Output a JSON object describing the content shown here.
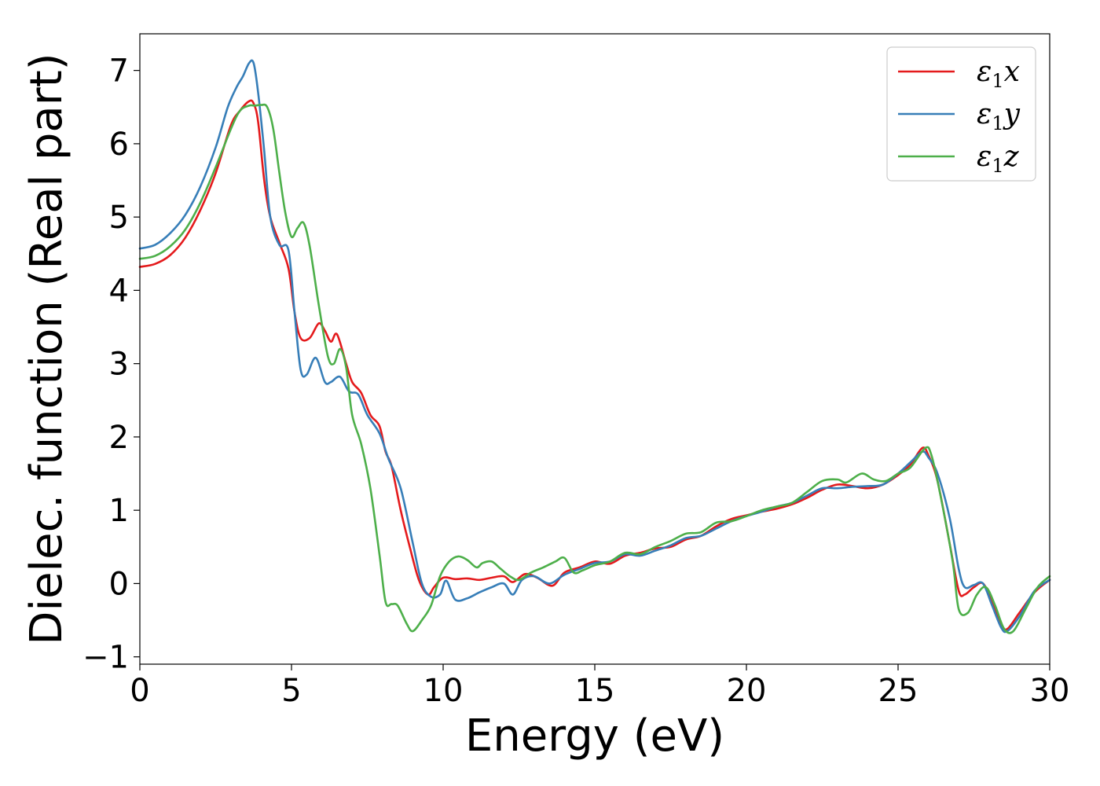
{
  "chart_data": {
    "type": "line",
    "title": "",
    "xlabel": "Energy (eV)",
    "ylabel": "Dielec. function (Real part)",
    "xlim": [
      0,
      30
    ],
    "ylim": [
      -1.1,
      7.5
    ],
    "xticks": [
      0,
      5,
      10,
      15,
      20,
      25,
      30
    ],
    "xtick_labels": [
      "0",
      "5",
      "10",
      "15",
      "20",
      "25",
      "30"
    ],
    "yticks": [
      -1,
      0,
      1,
      2,
      3,
      4,
      5,
      6,
      7
    ],
    "ytick_labels": [
      "−1",
      "0",
      "1",
      "2",
      "3",
      "4",
      "5",
      "6",
      "7"
    ],
    "grid": false,
    "legend_position": "top-right",
    "series": [
      {
        "name": "ε₁x",
        "name_main": "ε",
        "name_sub": "1",
        "name_suffix": "x",
        "color": "#e41a1c",
        "x": [
          0,
          0.5,
          1,
          1.5,
          2,
          2.5,
          3,
          3.3,
          3.6,
          3.75,
          3.9,
          4.1,
          4.3,
          4.6,
          4.9,
          5.1,
          5.3,
          5.6,
          5.9,
          6.1,
          6.3,
          6.5,
          6.8,
          7.0,
          7.3,
          7.6,
          7.9,
          8.1,
          8.3,
          8.6,
          8.9,
          9.2,
          9.5,
          9.7,
          10.0,
          10.4,
          10.8,
          11.2,
          11.6,
          12.0,
          12.3,
          12.7,
          13.1,
          13.6,
          14.0,
          14.5,
          15.0,
          15.5,
          16.0,
          16.5,
          17.0,
          17.5,
          18.0,
          18.5,
          19.0,
          19.5,
          20.0,
          20.5,
          21.0,
          21.5,
          22.0,
          22.5,
          23.0,
          23.5,
          24.0,
          24.5,
          25.0,
          25.4,
          25.8,
          26.0,
          26.3,
          26.7,
          27.0,
          27.2,
          27.5,
          27.8,
          28.1,
          28.4,
          28.6,
          29.0,
          29.5,
          30.0
        ],
        "values": [
          4.32,
          4.36,
          4.48,
          4.72,
          5.1,
          5.6,
          6.25,
          6.45,
          6.58,
          6.55,
          6.3,
          5.5,
          5.0,
          4.65,
          4.3,
          3.7,
          3.35,
          3.35,
          3.55,
          3.45,
          3.3,
          3.4,
          3.0,
          2.75,
          2.6,
          2.3,
          2.15,
          1.8,
          1.6,
          1.0,
          0.5,
          0.05,
          -0.15,
          -0.05,
          0.08,
          0.06,
          0.07,
          0.05,
          0.08,
          0.1,
          0.02,
          0.13,
          0.08,
          -0.03,
          0.15,
          0.22,
          0.3,
          0.27,
          0.38,
          0.42,
          0.48,
          0.5,
          0.6,
          0.65,
          0.78,
          0.88,
          0.93,
          0.98,
          1.02,
          1.08,
          1.17,
          1.28,
          1.35,
          1.33,
          1.3,
          1.35,
          1.48,
          1.62,
          1.85,
          1.75,
          1.4,
          0.55,
          -0.1,
          -0.15,
          -0.05,
          0.0,
          -0.25,
          -0.55,
          -0.62,
          -0.4,
          -0.12,
          0.05
        ]
      },
      {
        "name": "ε₁y",
        "name_main": "ε",
        "name_sub": "1",
        "name_suffix": "y",
        "color": "#377eb8",
        "x": [
          0,
          0.5,
          1,
          1.5,
          2,
          2.5,
          2.9,
          3.2,
          3.4,
          3.6,
          3.75,
          3.9,
          4.1,
          4.3,
          4.6,
          4.9,
          5.1,
          5.3,
          5.5,
          5.8,
          6.1,
          6.3,
          6.6,
          6.9,
          7.2,
          7.5,
          7.9,
          8.2,
          8.6,
          9.0,
          9.3,
          9.6,
          9.9,
          10.1,
          10.4,
          10.8,
          11.2,
          11.6,
          12.0,
          12.3,
          12.6,
          13.0,
          13.5,
          14.0,
          14.5,
          15.0,
          15.5,
          16.0,
          16.5,
          17.0,
          17.5,
          18.0,
          18.5,
          19.0,
          19.5,
          20.0,
          20.5,
          21.0,
          21.5,
          22.0,
          22.5,
          23.0,
          23.5,
          24.0,
          24.5,
          25.0,
          25.4,
          25.8,
          26.0,
          26.3,
          26.7,
          27.0,
          27.2,
          27.5,
          27.8,
          28.1,
          28.4,
          28.6,
          29.0,
          29.5,
          30.0
        ],
        "values": [
          4.57,
          4.62,
          4.78,
          5.03,
          5.42,
          5.95,
          6.5,
          6.78,
          6.92,
          7.1,
          7.1,
          6.7,
          5.9,
          5.0,
          4.62,
          4.55,
          3.7,
          2.92,
          2.85,
          3.08,
          2.75,
          2.75,
          2.82,
          2.62,
          2.58,
          2.3,
          2.05,
          1.7,
          1.3,
          0.55,
          0.0,
          -0.18,
          -0.15,
          0.04,
          -0.22,
          -0.2,
          -0.12,
          -0.05,
          0.0,
          -0.15,
          0.05,
          0.1,
          0.0,
          0.12,
          0.2,
          0.28,
          0.3,
          0.4,
          0.38,
          0.45,
          0.52,
          0.62,
          0.65,
          0.75,
          0.85,
          0.92,
          0.98,
          1.05,
          1.1,
          1.2,
          1.3,
          1.3,
          1.32,
          1.33,
          1.35,
          1.5,
          1.65,
          1.8,
          1.72,
          1.5,
          0.9,
          0.2,
          -0.05,
          -0.02,
          0.0,
          -0.3,
          -0.6,
          -0.65,
          -0.45,
          -0.1,
          0.05
        ]
      },
      {
        "name": "ε₁z",
        "name_main": "ε",
        "name_sub": "1",
        "name_suffix": "z",
        "color": "#4daf4a",
        "x": [
          0,
          0.5,
          1,
          1.5,
          2,
          2.5,
          3,
          3.3,
          3.6,
          3.8,
          4.0,
          4.2,
          4.4,
          4.6,
          4.8,
          5.0,
          5.2,
          5.4,
          5.6,
          5.9,
          6.2,
          6.4,
          6.6,
          6.8,
          7.0,
          7.3,
          7.6,
          7.9,
          8.1,
          8.3,
          8.5,
          8.8,
          9.0,
          9.3,
          9.6,
          9.9,
          10.2,
          10.5,
          10.8,
          11.1,
          11.3,
          11.6,
          11.9,
          12.2,
          12.5,
          12.9,
          13.3,
          13.7,
          14.0,
          14.3,
          14.6,
          15.0,
          15.5,
          16.0,
          16.5,
          17.0,
          17.5,
          18.0,
          18.5,
          19.0,
          19.5,
          20.0,
          20.5,
          21.0,
          21.5,
          22.0,
          22.5,
          23.0,
          23.3,
          23.8,
          24.2,
          24.6,
          25.0,
          25.4,
          25.9,
          26.1,
          26.4,
          26.8,
          27.0,
          27.3,
          27.6,
          27.9,
          28.2,
          28.5,
          28.8,
          29.2,
          29.6,
          30.0
        ],
        "values": [
          4.43,
          4.47,
          4.6,
          4.83,
          5.2,
          5.68,
          6.2,
          6.45,
          6.52,
          6.52,
          6.53,
          6.5,
          6.2,
          5.6,
          5.05,
          4.73,
          4.85,
          4.92,
          4.6,
          3.8,
          3.1,
          3.0,
          3.2,
          2.95,
          2.3,
          1.9,
          1.3,
          0.4,
          -0.25,
          -0.28,
          -0.3,
          -0.55,
          -0.65,
          -0.5,
          -0.3,
          0.1,
          0.3,
          0.37,
          0.32,
          0.22,
          0.28,
          0.3,
          0.2,
          0.1,
          0.05,
          0.15,
          0.22,
          0.3,
          0.35,
          0.15,
          0.18,
          0.25,
          0.3,
          0.42,
          0.4,
          0.5,
          0.58,
          0.68,
          0.7,
          0.83,
          0.85,
          0.92,
          1.0,
          1.05,
          1.1,
          1.25,
          1.4,
          1.42,
          1.38,
          1.5,
          1.42,
          1.4,
          1.5,
          1.58,
          1.85,
          1.75,
          1.2,
          0.3,
          -0.35,
          -0.4,
          -0.15,
          -0.05,
          -0.3,
          -0.62,
          -0.65,
          -0.35,
          -0.05,
          0.1
        ]
      }
    ]
  }
}
